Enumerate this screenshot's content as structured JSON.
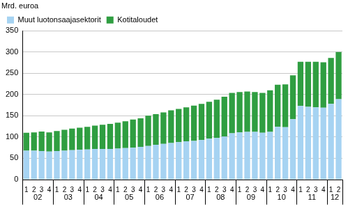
{
  "chart_data": {
    "type": "bar",
    "stacked": true,
    "ylabel": "Mrd. euroa",
    "categories": [
      "1",
      "2",
      "3",
      "4",
      "1",
      "2",
      "3",
      "4",
      "1",
      "2",
      "3",
      "4",
      "1",
      "2",
      "3",
      "4",
      "1",
      "2",
      "3",
      "4",
      "1",
      "2",
      "3",
      "4",
      "1",
      "2",
      "3",
      "4",
      "1",
      "2",
      "3",
      "4",
      "1",
      "2",
      "3",
      "4",
      "1",
      "2",
      "3",
      "4",
      "1",
      "2"
    ],
    "x_groups": [
      "02",
      "03",
      "04",
      "05",
      "06",
      "07",
      "08",
      "09",
      "10",
      "11",
      "12"
    ],
    "series": [
      {
        "name": "Muut luotonsaajasektorit",
        "color": "#a6d3f2",
        "values": [
          68,
          68,
          67,
          66,
          67,
          68,
          69,
          70,
          71,
          72,
          72,
          72,
          73,
          74,
          75,
          77,
          79,
          82,
          84,
          86,
          88,
          90,
          91,
          93,
          96,
          98,
          101,
          109,
          111,
          112,
          112,
          110,
          112,
          124,
          123,
          142,
          173,
          171,
          170,
          169,
          178,
          189
        ]
      },
      {
        "name": "Kotitaloudet",
        "color": "#2f9e41",
        "values": [
          42,
          43,
          46,
          45,
          47,
          49,
          51,
          52,
          53,
          55,
          57,
          59,
          61,
          63,
          66,
          67,
          71,
          72,
          74,
          77,
          78,
          80,
          83,
          85,
          87,
          90,
          94,
          95,
          95,
          95,
          94,
          94,
          98,
          99,
          101,
          103,
          104,
          106,
          107,
          107,
          108,
          111
        ]
      }
    ],
    "ylim": [
      0,
      350
    ],
    "yticks": [
      0,
      50,
      100,
      150,
      200,
      250,
      300,
      350
    ],
    "grid": true,
    "legend": "top-left"
  }
}
